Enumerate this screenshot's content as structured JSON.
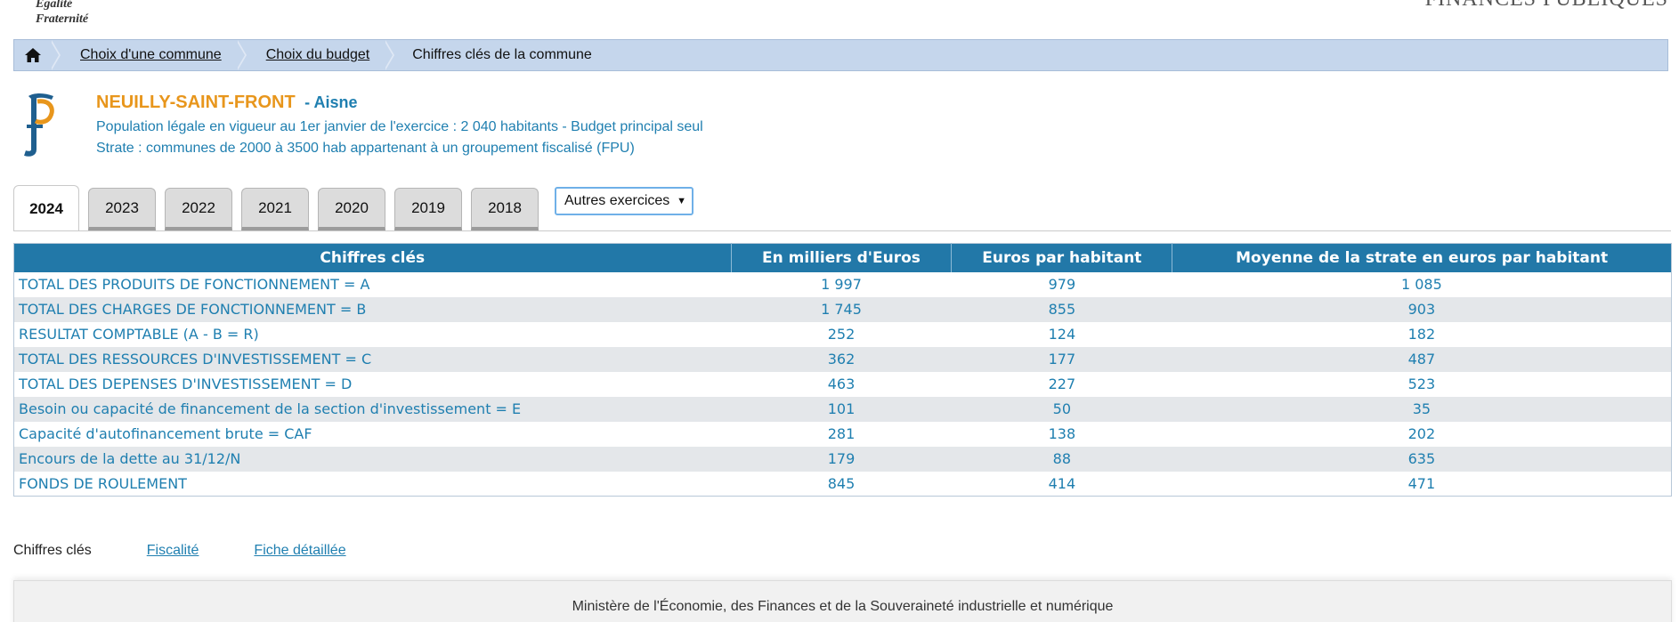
{
  "header": {
    "motto_line1": "Égalité",
    "motto_line2": "Fraternité",
    "brand": "FINANCES PUBLIQUES"
  },
  "breadcrumb": {
    "home_icon": "home-icon",
    "items": [
      "Choix d'une commune",
      "Choix du budget"
    ],
    "current": "Chiffres clés de la commune"
  },
  "commune": {
    "name": "NEUILLY-SAINT-FRONT",
    "department": "- Aisne",
    "population_line": "Population légale en vigueur au 1er janvier de l'exercice : 2 040 habitants - Budget principal seul",
    "strate_line": "Strate : communes de 2000 à 3500 hab appartenant à un groupement fiscalisé (FPU)"
  },
  "tabs": {
    "years": [
      "2024",
      "2023",
      "2022",
      "2021",
      "2020",
      "2019",
      "2018"
    ],
    "active": "2024",
    "other_select": "Autres exercices"
  },
  "table": {
    "headers": [
      "Chiffres clés",
      "En milliers d'Euros",
      "Euros par habitant",
      "Moyenne de la strate en euros par habitant"
    ],
    "rows": [
      [
        "TOTAL DES PRODUITS DE FONCTIONNEMENT = A",
        "1 997",
        "979",
        "1 085"
      ],
      [
        "TOTAL DES CHARGES DE FONCTIONNEMENT = B",
        "1 745",
        "855",
        "903"
      ],
      [
        "RESULTAT COMPTABLE (A - B = R)",
        "252",
        "124",
        "182"
      ],
      [
        "TOTAL DES RESSOURCES D'INVESTISSEMENT = C",
        "362",
        "177",
        "487"
      ],
      [
        "TOTAL DES DEPENSES D'INVESTISSEMENT = D",
        "463",
        "227",
        "523"
      ],
      [
        "Besoin ou capacité de financement de la section d'investissement = E",
        "101",
        "50",
        "35"
      ],
      [
        "Capacité d'autofinancement brute = CAF",
        "281",
        "138",
        "202"
      ],
      [
        "Encours de la dette au 31/12/N",
        "179",
        "88",
        "635"
      ],
      [
        "FONDS DE ROULEMENT",
        "845",
        "414",
        "471"
      ]
    ]
  },
  "bottom_nav": {
    "current": "Chiffres clés",
    "links": [
      "Fiscalité",
      "Fiche détaillée"
    ]
  },
  "footer": {
    "text": "Ministère de l'Économie, des Finances et de la Souveraineté industrielle et numérique"
  },
  "colors": {
    "accent_blue": "#2278a8",
    "text_blue": "#1f7fb0",
    "commune_orange": "#e8961c",
    "breadcrumb_bg": "#c5d6ec"
  }
}
